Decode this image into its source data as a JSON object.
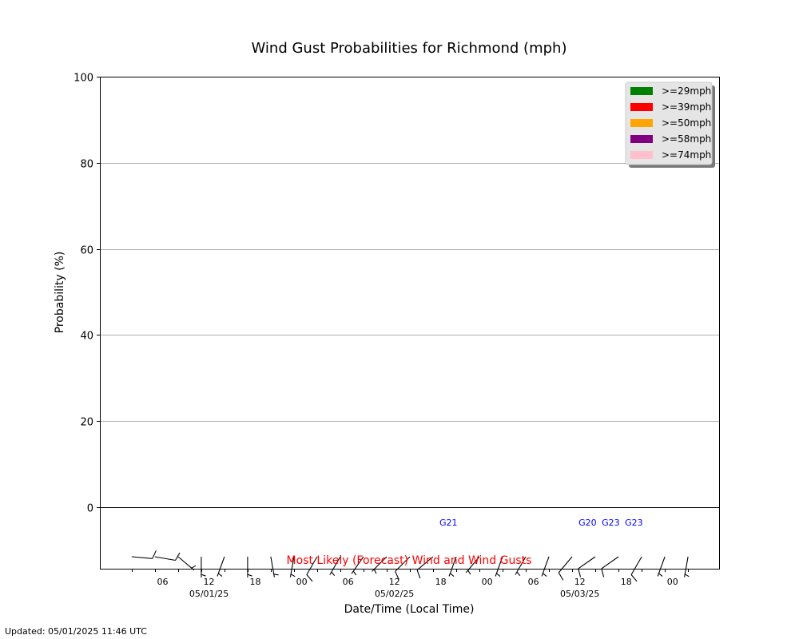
{
  "chart_data": {
    "type": "bar",
    "title": "Wind Gust Probabilities for Richmond (mph)",
    "ylabel": "Probability (%)",
    "xlabel": "Date/Time (Local Time)",
    "ylim": [
      0,
      100
    ],
    "yticks": [
      "0",
      "20",
      "40",
      "60",
      "80",
      "100"
    ],
    "grid": "horizontal",
    "legend_position": "top-right",
    "x_time_ticks": [
      {
        "hour": 6,
        "label": "06",
        "date": ""
      },
      {
        "hour": 12,
        "label": "12",
        "date": "05/01/25"
      },
      {
        "hour": 18,
        "label": "18",
        "date": ""
      },
      {
        "hour": 24,
        "label": "00",
        "date": ""
      },
      {
        "hour": 30,
        "label": "06",
        "date": ""
      },
      {
        "hour": 36,
        "label": "12",
        "date": "05/02/25"
      },
      {
        "hour": 42,
        "label": "18",
        "date": ""
      },
      {
        "hour": 48,
        "label": "00",
        "date": ""
      },
      {
        "hour": 54,
        "label": "06",
        "date": ""
      },
      {
        "hour": 60,
        "label": "12",
        "date": "05/03/25"
      },
      {
        "hour": 66,
        "label": "18",
        "date": ""
      },
      {
        "hour": 72,
        "label": "00",
        "date": ""
      }
    ],
    "series": [
      {
        "name": ">=29mph",
        "color": "#008000",
        "values": []
      },
      {
        "name": ">=39mph",
        "color": "#ff0000",
        "values": []
      },
      {
        "name": ">=50mph",
        "color": "#ffa500",
        "values": []
      },
      {
        "name": ">=58mph",
        "color": "#800080",
        "values": []
      },
      {
        "name": ">=74mph",
        "color": "#ffc0cb",
        "values": []
      }
    ],
    "wind_barbs": [
      {
        "hour": 2,
        "dir": 95,
        "speed": 6
      },
      {
        "hour": 5,
        "dir": 100,
        "speed": 6
      },
      {
        "hour": 8,
        "dir": 130,
        "speed": 3
      },
      {
        "hour": 11,
        "dir": 180,
        "speed": 3
      },
      {
        "hour": 14,
        "dir": 200,
        "speed": 3
      },
      {
        "hour": 17,
        "dir": 180,
        "speed": 3
      },
      {
        "hour": 20,
        "dir": 170,
        "speed": 3
      },
      {
        "hour": 23,
        "dir": 190,
        "speed": 3
      },
      {
        "hour": 26,
        "dir": 210,
        "speed": 6
      },
      {
        "hour": 29,
        "dir": 210,
        "speed": 3
      },
      {
        "hour": 32,
        "dir": 215,
        "speed": 3
      },
      {
        "hour": 35,
        "dir": 225,
        "speed": 3
      },
      {
        "hour": 38,
        "dir": 225,
        "speed": 6
      },
      {
        "hour": 41,
        "dir": 230,
        "speed": 6
      },
      {
        "hour": 44,
        "dir": 200,
        "speed": 3
      },
      {
        "hour": 47,
        "dir": 220,
        "speed": 3
      },
      {
        "hour": 50,
        "dir": 200,
        "speed": 3
      },
      {
        "hour": 53,
        "dir": 210,
        "speed": 3
      },
      {
        "hour": 56,
        "dir": 200,
        "speed": 3
      },
      {
        "hour": 59,
        "dir": 220,
        "speed": 6
      },
      {
        "hour": 62,
        "dir": 235,
        "speed": 6
      },
      {
        "hour": 65,
        "dir": 235,
        "speed": 6
      },
      {
        "hour": 68,
        "dir": 210,
        "speed": 6
      },
      {
        "hour": 71,
        "dir": 200,
        "speed": 3
      },
      {
        "hour": 74,
        "dir": 190,
        "speed": 3
      }
    ],
    "gust_labels": [
      {
        "hour": 43,
        "label": "G21"
      },
      {
        "hour": 61,
        "label": "G20"
      },
      {
        "hour": 64,
        "label": "G23"
      },
      {
        "hour": 67,
        "label": "G23"
      }
    ],
    "forecast_note": "Most Likely (Forecast) Wind and Wind Gusts"
  },
  "footer": {
    "updated": "Updated: 05/01/2025 11:46 UTC"
  },
  "colors": {
    "gust_label": "#0000ff",
    "note": "#ff0000",
    "grid": "#b0b0b0"
  }
}
